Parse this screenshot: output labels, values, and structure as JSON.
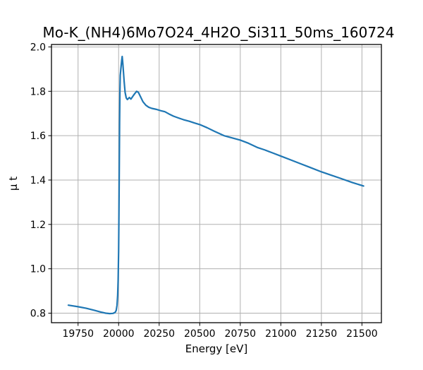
{
  "figure": {
    "background": "#ffffff"
  },
  "chart_data": {
    "type": "line",
    "title": "Mo-K_(NH4)6Mo7O24_4H2O_Si311_50ms_160724",
    "xlabel": "Energy [eV]",
    "ylabel": "μ t",
    "xlim": [
      19586,
      21620
    ],
    "ylim": [
      0.757,
      2.011
    ],
    "xticks": [
      19750,
      20000,
      20250,
      20500,
      20750,
      21000,
      21250,
      21500
    ],
    "yticks": [
      0.8,
      1.0,
      1.2,
      1.4,
      1.6,
      1.8,
      2.0
    ],
    "grid": true,
    "legend": false,
    "colors": {
      "line": "#1f77b4",
      "grid": "#b0b0b0",
      "spine": "#000000",
      "tick": "#000000",
      "background": "#ffffff"
    },
    "line_width": 2.2,
    "series": [
      {
        "x": [
          19690,
          19750,
          19800,
          19850,
          19890,
          19920,
          19945,
          19965,
          19978,
          19985,
          19990,
          19994,
          19997,
          20000,
          20002,
          20004,
          20006,
          20008,
          20010,
          20013,
          20016,
          20019,
          20022,
          20026,
          20030,
          20034,
          20040,
          20047,
          20054,
          20066,
          20076,
          20090,
          20100,
          20111,
          20122,
          20134,
          20150,
          20168,
          20186,
          20205,
          20230,
          20258,
          20285,
          20310,
          20338,
          20368,
          20400,
          20435,
          20468,
          20500,
          20545,
          20590,
          20650,
          20700,
          20750,
          20800,
          20858,
          20900,
          20950,
          21000,
          21060,
          21120,
          21180,
          21250,
          21310,
          21370,
          21440,
          21510
        ],
        "y": [
          0.836,
          0.829,
          0.822,
          0.813,
          0.805,
          0.8,
          0.798,
          0.799,
          0.803,
          0.812,
          0.835,
          0.88,
          0.95,
          1.08,
          1.25,
          1.45,
          1.66,
          1.8,
          1.872,
          1.895,
          1.918,
          1.94,
          1.957,
          1.925,
          1.885,
          1.845,
          1.795,
          1.77,
          1.763,
          1.772,
          1.765,
          1.78,
          1.79,
          1.8,
          1.795,
          1.777,
          1.753,
          1.737,
          1.728,
          1.723,
          1.719,
          1.713,
          1.708,
          1.698,
          1.688,
          1.68,
          1.672,
          1.665,
          1.657,
          1.65,
          1.636,
          1.62,
          1.6,
          1.59,
          1.58,
          1.566,
          1.546,
          1.536,
          1.522,
          1.508,
          1.491,
          1.474,
          1.457,
          1.437,
          1.422,
          1.407,
          1.389,
          1.373
        ]
      }
    ]
  }
}
